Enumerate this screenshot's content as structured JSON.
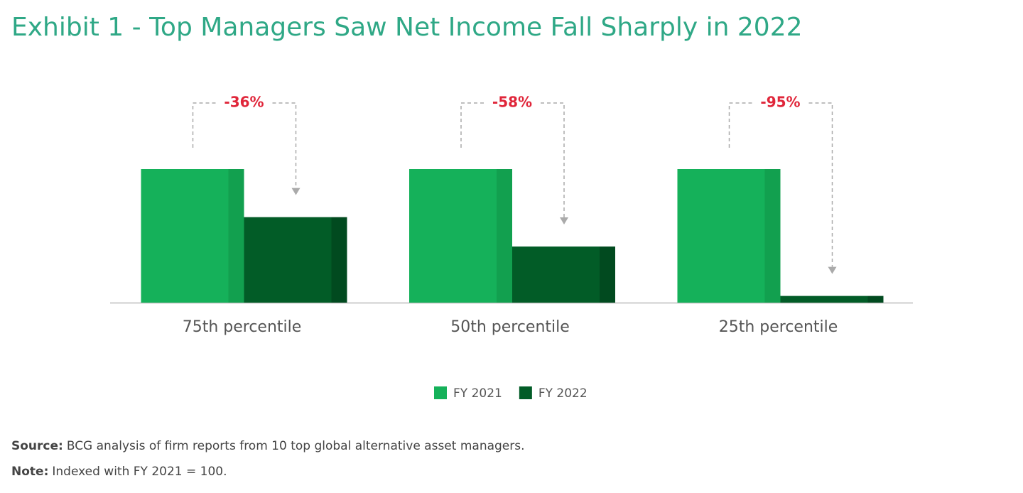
{
  "chart_data": {
    "type": "bar",
    "title": "Exhibit 1 - Top Managers Saw Net Income Fall Sharply in 2022",
    "categories": [
      "75th percentile",
      "50th percentile",
      "25th percentile"
    ],
    "series": [
      {
        "name": "FY 2021",
        "color": "#15b15a",
        "side_color": "#12a04f",
        "values": [
          100,
          100,
          100
        ]
      },
      {
        "name": "FY 2022",
        "color": "#025c27",
        "side_color": "#014a1f",
        "values": [
          64,
          42,
          5
        ]
      }
    ],
    "change_labels": [
      "-36%",
      "-58%",
      "-95%"
    ],
    "ylim": [
      0,
      100
    ],
    "source": {
      "label": "Source:",
      "text": "BCG analysis of firm reports from 10 top global alternative asset managers."
    },
    "note": {
      "label": "Note:",
      "text": "Indexed with FY 2021 = 100."
    }
  }
}
